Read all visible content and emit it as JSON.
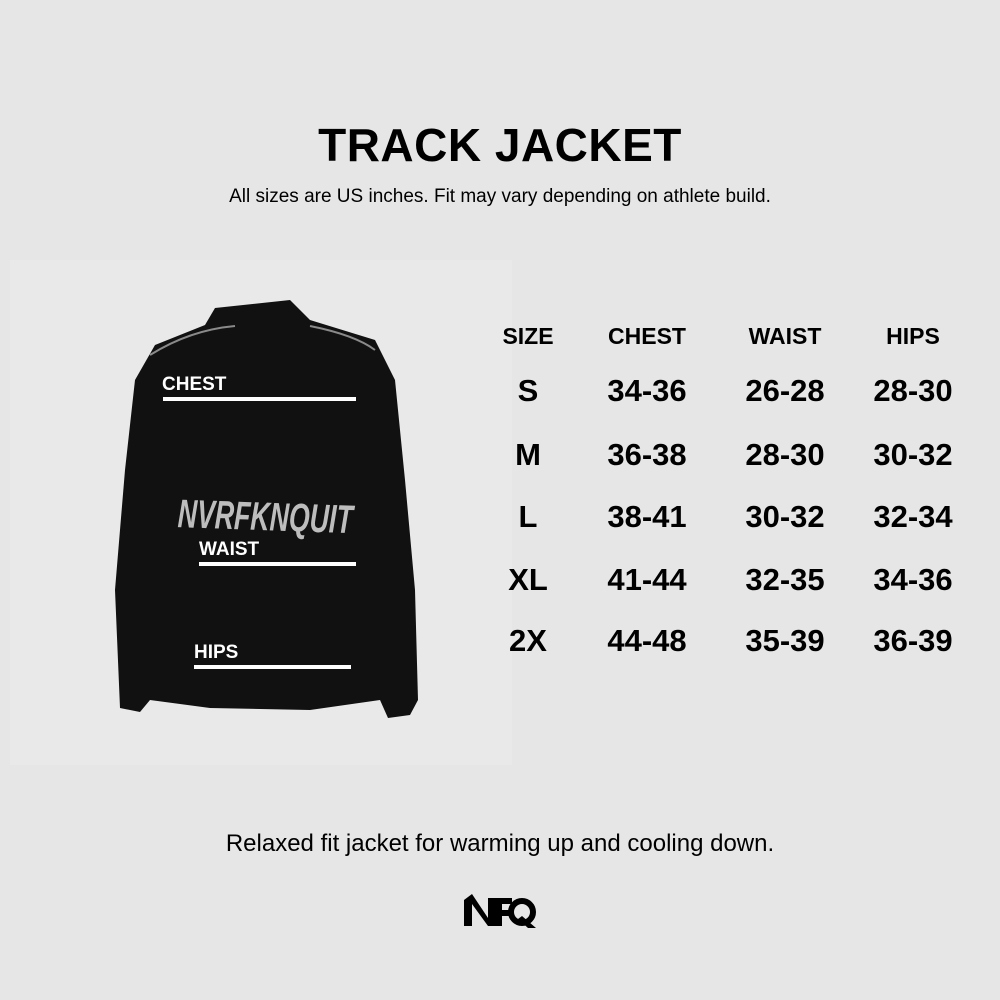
{
  "title": "TRACK JACKET",
  "subtitle": "All sizes are US inches. Fit may vary depending on athlete build.",
  "photo": {
    "print_text": "NVRFKNQUIT",
    "labels": {
      "chest": "CHEST",
      "waist": "WAIST",
      "hips": "HIPS"
    }
  },
  "table": {
    "headers": [
      "SIZE",
      "CHEST",
      "WAIST",
      "HIPS"
    ],
    "rows": [
      [
        "S",
        "34-36",
        "26-28",
        "28-30"
      ],
      [
        "M",
        "36-38",
        "28-30",
        "30-32"
      ],
      [
        "L",
        "38-41",
        "30-32",
        "32-34"
      ],
      [
        "XL",
        "41-44",
        "32-35",
        "34-36"
      ],
      [
        "2X",
        "44-48",
        "35-39",
        "36-39"
      ]
    ]
  },
  "footer": "Relaxed fit jacket for warming up and cooling down.",
  "logo": "NFQ",
  "colors": {
    "background": "#e6e6e6",
    "jacket": "#111111",
    "text": "#000000"
  }
}
